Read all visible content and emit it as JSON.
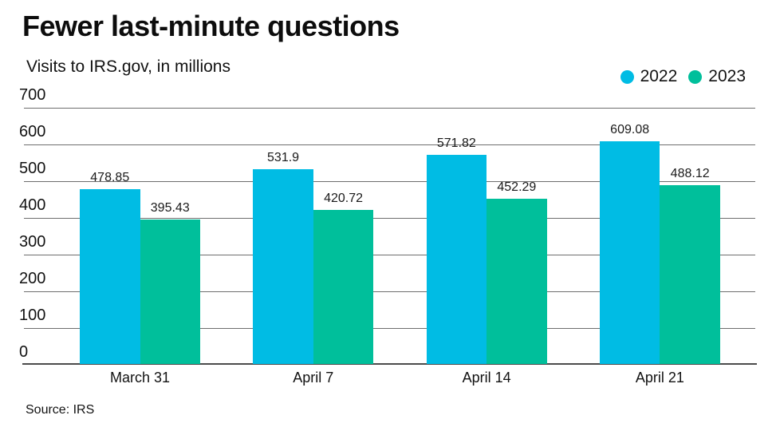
{
  "header": {
    "title": "Fewer last-minute questions",
    "subtitle": "Visits to IRS.gov, in millions"
  },
  "source": "Source: IRS",
  "colors": {
    "series_2022": "#00bce4",
    "series_2023": "#00bf9b",
    "gridline": "#6e6e6e",
    "axis": "#4b4b4b",
    "text": "#121212"
  },
  "chart_data": {
    "type": "bar",
    "title": "Fewer last-minute questions",
    "subtitle": "Visits to IRS.gov, in millions",
    "categories": [
      "March 31",
      "April 7",
      "April 14",
      "April 21"
    ],
    "series": [
      {
        "name": "2022",
        "color": "#00bce4",
        "values": [
          478.85,
          531.9,
          571.82,
          609.08
        ]
      },
      {
        "name": "2023",
        "color": "#00bf9b",
        "values": [
          395.43,
          420.72,
          452.29,
          488.12
        ]
      }
    ],
    "value_labels": [
      "478.85",
      "395.43",
      "531.9",
      "420.72",
      "571.82",
      "452.29",
      "609.08",
      "488.12"
    ],
    "xlabel": "",
    "ylabel": "",
    "ylim": [
      0,
      700
    ],
    "yticks": [
      0,
      100,
      200,
      300,
      400,
      500,
      600,
      700
    ],
    "grid": true,
    "legend_position": "top-right",
    "source": "Source: IRS"
  }
}
